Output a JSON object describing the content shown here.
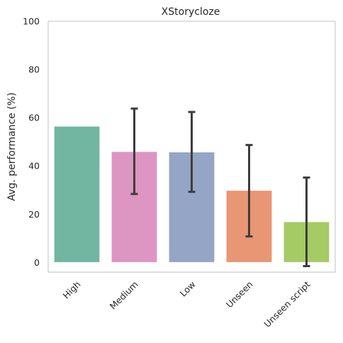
{
  "chart_data": {
    "type": "bar",
    "title": "XStorycloze",
    "xlabel": "",
    "ylabel": "Avg. performance (%)",
    "categories": [
      "High",
      "Medium",
      "Low",
      "Unseen",
      "Unseen script"
    ],
    "values": [
      56.5,
      46.0,
      45.8,
      29.9,
      16.9
    ],
    "error_bars": [
      null,
      [
        28.4,
        63.8
      ],
      [
        29.3,
        62.4
      ],
      [
        10.8,
        48.7
      ],
      [
        -1.5,
        35.2
      ]
    ],
    "bar_colors": [
      "#72b6a1",
      "#dd95c1",
      "#95a5c6",
      "#e99675",
      "#a4cb64"
    ],
    "ylim": [
      -4,
      100
    ],
    "yticks": [
      0,
      20,
      40,
      60,
      80,
      100
    ],
    "grid": false,
    "legend": "none"
  }
}
